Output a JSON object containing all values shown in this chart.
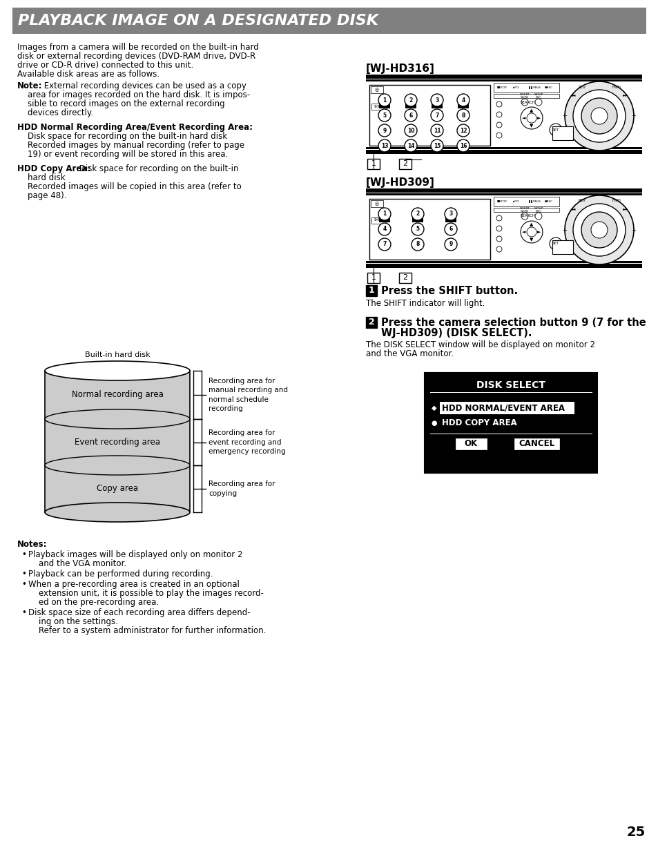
{
  "title": "PLAYBACK IMAGE ON A DESIGNATED DISK",
  "title_bg": "#808080",
  "title_fg": "#ffffff",
  "page_bg": "#ffffff",
  "page_number": "25",
  "body_text_size": 8.5,
  "wj_hd316_label": "[WJ-HD316]",
  "wj_hd309_label": "[WJ-HD309]",
  "step1_bold": "Press the SHIFT button.",
  "step1_text": "The SHIFT indicator will light.",
  "step2_line1": "Press the camera selection button 9 (7 for the",
  "step2_line2": "WJ-HD309) (DISK SELECT).",
  "step2_text1": "The DISK SELECT window will be displayed on monitor 2",
  "step2_text2": "and the VGA monitor.",
  "disk_select_title": "DISK SELECT",
  "disk_select_opt1": "◆ HDD NORMAL/EVENT AREA",
  "disk_select_opt2": "● HDD COPY AREA",
  "disk_select_ok": "OK",
  "disk_select_cancel": "CANCEL",
  "disk_label": "Built-in hard disk",
  "area1_label": "Normal recording area",
  "area2_label": "Event recording area",
  "area3_label": "Copy area",
  "brace1_text": "Recording area for\nmanual recording and\nnormal schedule\nrecording",
  "brace2_text": "Recording area for\nevent recording and\nemergency recording",
  "brace3_text": "Recording area for\ncopying",
  "notes_header": "Notes:"
}
